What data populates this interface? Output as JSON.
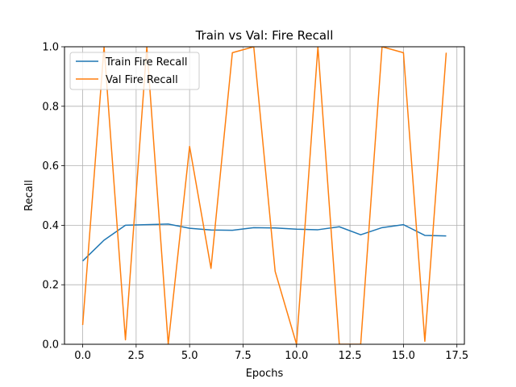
{
  "chart_data": {
    "type": "line",
    "title": "Train vs Val: Fire Recall",
    "xlabel": "Epochs",
    "ylabel": "Recall",
    "xlim": [
      -0.85,
      17.85
    ],
    "ylim": [
      0.0,
      1.0
    ],
    "x_ticks": [
      0.0,
      2.5,
      5.0,
      7.5,
      10.0,
      12.5,
      15.0,
      17.5
    ],
    "x_tick_labels": [
      "0.0",
      "2.5",
      "5.0",
      "7.5",
      "10.0",
      "12.5",
      "15.0",
      "17.5"
    ],
    "y_ticks": [
      0.0,
      0.2,
      0.4,
      0.6,
      0.8,
      1.0
    ],
    "y_tick_labels": [
      "0.0",
      "0.2",
      "0.4",
      "0.6",
      "0.8",
      "1.0"
    ],
    "grid": true,
    "legend_position": "top-left",
    "x": [
      0,
      1,
      2,
      3,
      4,
      5,
      6,
      7,
      8,
      9,
      10,
      11,
      12,
      13,
      14,
      15,
      16,
      17
    ],
    "series": [
      {
        "name": "Train Fire Recall",
        "color": "#1f77b4",
        "values": [
          0.28,
          0.35,
          0.4,
          0.402,
          0.404,
          0.39,
          0.384,
          0.383,
          0.392,
          0.391,
          0.387,
          0.385,
          0.395,
          0.368,
          0.392,
          0.402,
          0.366,
          0.364
        ]
      },
      {
        "name": "Val Fire Recall",
        "color": "#ff7f0e",
        "values": [
          0.065,
          1.0,
          0.015,
          1.0,
          0.0,
          0.665,
          0.255,
          0.98,
          1.0,
          0.245,
          0.0,
          1.0,
          0.0,
          0.0,
          1.0,
          0.98,
          0.01,
          0.98
        ]
      }
    ]
  }
}
